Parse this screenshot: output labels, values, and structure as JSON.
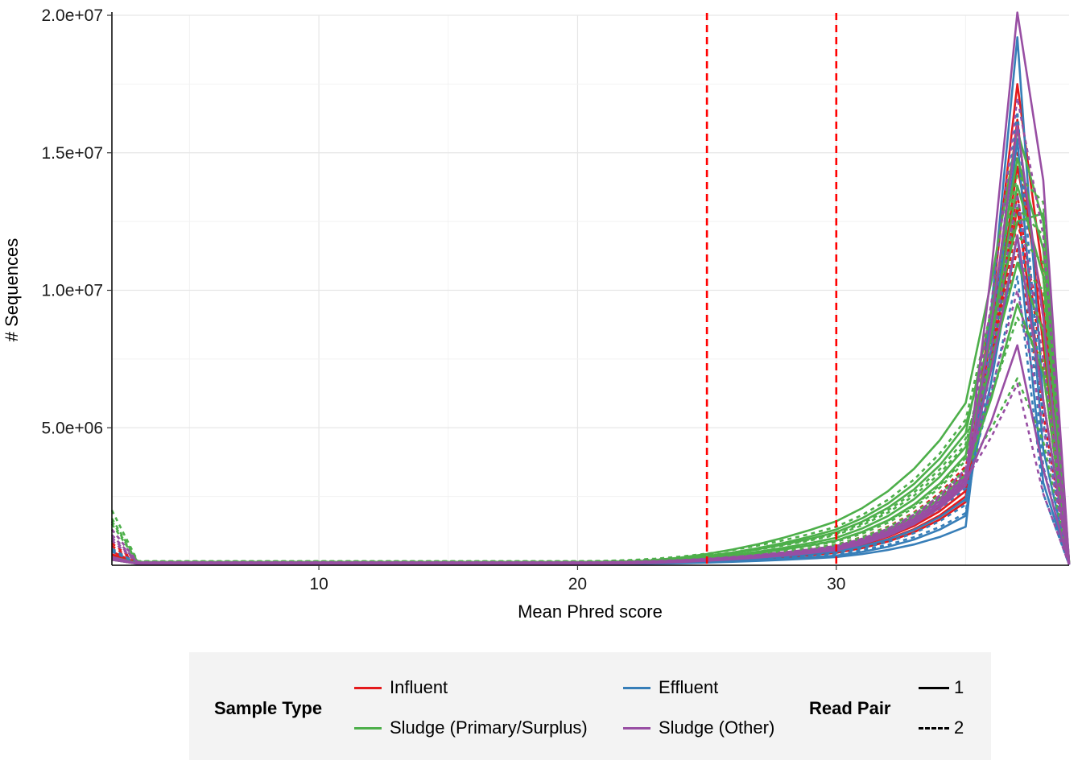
{
  "chart_data": {
    "type": "line",
    "title": "",
    "xlabel": "Mean Phred score",
    "ylabel": "# Sequences",
    "xlim": [
      2,
      39
    ],
    "ylim": [
      0,
      20000000
    ],
    "x_ticks": [
      10,
      20,
      30
    ],
    "y_ticks": [
      5000000,
      10000000,
      15000000,
      20000000
    ],
    "x_tick_labels": [
      "10",
      "20",
      "30"
    ],
    "y_tick_labels": [
      "5.0e+06",
      "1.0e+07",
      "1.5e+07",
      "2.0e+07"
    ],
    "grid": true,
    "vlines": [
      {
        "x": 25,
        "color": "#ff0000",
        "style": "dashed"
      },
      {
        "x": 30,
        "color": "#ff0000",
        "style": "dashed"
      }
    ],
    "x": [
      2,
      3,
      4,
      5,
      6,
      7,
      8,
      9,
      10,
      11,
      12,
      13,
      14,
      15,
      16,
      17,
      18,
      19,
      20,
      21,
      22,
      23,
      24,
      25,
      26,
      27,
      28,
      29,
      30,
      31,
      32,
      33,
      34,
      35,
      36,
      37,
      38,
      39
    ],
    "series": [
      {
        "type": "Influent",
        "pair": "1",
        "profile": {
          "low_start": 500000,
          "plateau": 60000,
          "v30": 550000,
          "v35": 2700000,
          "peak": 17500000,
          "v38": 10500000,
          "end": 80000
        }
      },
      {
        "type": "Influent",
        "pair": "2",
        "profile": {
          "low_start": 900000,
          "plateau": 90000,
          "v30": 700000,
          "v35": 3400000,
          "peak": 15000000,
          "v38": 9000000,
          "end": 60000
        }
      },
      {
        "type": "Influent",
        "pair": "1",
        "profile": {
          "low_start": 300000,
          "plateau": 50000,
          "v30": 450000,
          "v35": 2300000,
          "peak": 16200000,
          "v38": 8000000,
          "end": 50000
        }
      },
      {
        "type": "Influent",
        "pair": "2",
        "profile": {
          "low_start": 700000,
          "plateau": 80000,
          "v30": 650000,
          "v35": 3000000,
          "peak": 13500000,
          "v38": 7000000,
          "end": 40000
        }
      },
      {
        "type": "Influent",
        "pair": "1",
        "profile": {
          "low_start": 400000,
          "plateau": 55000,
          "v30": 500000,
          "v35": 2500000,
          "peak": 14500000,
          "v38": 9500000,
          "end": 70000
        }
      },
      {
        "type": "Influent",
        "pair": "2",
        "profile": {
          "low_start": 800000,
          "plateau": 85000,
          "v30": 600000,
          "v35": 3200000,
          "peak": 12500000,
          "v38": 8500000,
          "end": 50000
        }
      },
      {
        "type": "Influent",
        "pair": "1",
        "profile": {
          "low_start": 350000,
          "plateau": 60000,
          "v30": 600000,
          "v35": 2900000,
          "peak": 13000000,
          "v38": 6000000,
          "end": 40000
        }
      },
      {
        "type": "Influent",
        "pair": "2",
        "profile": {
          "low_start": 600000,
          "plateau": 80000,
          "v30": 750000,
          "v35": 3600000,
          "peak": 11500000,
          "v38": 5500000,
          "end": 30000
        }
      },
      {
        "type": "Effluent",
        "pair": "1",
        "profile": {
          "low_start": 300000,
          "plateau": 40000,
          "v30": 300000,
          "v35": 1400000,
          "peak": 19200000,
          "v38": 6000000,
          "end": 30000
        }
      },
      {
        "type": "Effluent",
        "pair": "2",
        "profile": {
          "low_start": 600000,
          "plateau": 60000,
          "v30": 400000,
          "v35": 1900000,
          "peak": 16500000,
          "v38": 5200000,
          "end": 20000
        }
      },
      {
        "type": "Effluent",
        "pair": "1",
        "profile": {
          "low_start": 250000,
          "plateau": 45000,
          "v30": 350000,
          "v35": 1800000,
          "peak": 15500000,
          "v38": 4200000,
          "end": 30000
        }
      },
      {
        "type": "Effluent",
        "pair": "2",
        "profile": {
          "low_start": 500000,
          "plateau": 65000,
          "v30": 450000,
          "v35": 2200000,
          "peak": 13500000,
          "v38": 3600000,
          "end": 20000
        }
      },
      {
        "type": "Effluent",
        "pair": "1",
        "profile": {
          "low_start": 300000,
          "plateau": 50000,
          "v30": 500000,
          "v35": 2400000,
          "peak": 12000000,
          "v38": 3000000,
          "end": 20000
        }
      },
      {
        "type": "Effluent",
        "pair": "2",
        "profile": {
          "low_start": 550000,
          "plateau": 70000,
          "v30": 600000,
          "v35": 2800000,
          "peak": 10500000,
          "v38": 2600000,
          "end": 15000
        }
      },
      {
        "type": "Sludge (Primary/Surplus)",
        "pair": "1",
        "profile": {
          "low_start": 300000,
          "plateau": 80000,
          "v30": 1600000,
          "v35": 5900000,
          "peak": 15800000,
          "v38": 12500000,
          "end": 100000
        }
      },
      {
        "type": "Sludge (Primary/Surplus)",
        "pair": "2",
        "profile": {
          "low_start": 2000000,
          "plateau": 150000,
          "v30": 1400000,
          "v35": 5300000,
          "peak": 14200000,
          "v38": 13200000,
          "end": 90000
        }
      },
      {
        "type": "Sludge (Primary/Surplus)",
        "pair": "1",
        "profile": {
          "low_start": 250000,
          "plateau": 70000,
          "v30": 1200000,
          "v35": 4800000,
          "peak": 14800000,
          "v38": 11500000,
          "end": 80000
        }
      },
      {
        "type": "Sludge (Primary/Surplus)",
        "pair": "2",
        "profile": {
          "low_start": 1700000,
          "plateau": 140000,
          "v30": 1100000,
          "v35": 4400000,
          "peak": 13000000,
          "v38": 12000000,
          "end": 70000
        }
      },
      {
        "type": "Sludge (Primary/Surplus)",
        "pair": "1",
        "profile": {
          "low_start": 200000,
          "plateau": 60000,
          "v30": 900000,
          "v35": 4000000,
          "peak": 13800000,
          "v38": 10500000,
          "end": 70000
        }
      },
      {
        "type": "Sludge (Primary/Surplus)",
        "pair": "2",
        "profile": {
          "low_start": 1500000,
          "plateau": 120000,
          "v30": 850000,
          "v35": 3800000,
          "peak": 12000000,
          "v38": 11000000,
          "end": 60000
        }
      },
      {
        "type": "Sludge (Primary/Surplus)",
        "pair": "1",
        "profile": {
          "low_start": 250000,
          "plateau": 70000,
          "v30": 1000000,
          "v35": 4300000,
          "peak": 11000000,
          "v38": 8500000,
          "end": 60000
        }
      },
      {
        "type": "Sludge (Primary/Surplus)",
        "pair": "2",
        "profile": {
          "low_start": 1300000,
          "plateau": 110000,
          "v30": 900000,
          "v35": 3900000,
          "peak": 9000000,
          "v38": 7500000,
          "end": 50000
        }
      },
      {
        "type": "Sludge (Primary/Surplus)",
        "pair": "1",
        "profile": {
          "low_start": 200000,
          "plateau": 60000,
          "v30": 700000,
          "v35": 3300000,
          "peak": 9500000,
          "v38": 7000000,
          "end": 50000
        }
      },
      {
        "type": "Sludge (Primary/Surplus)",
        "pair": "2",
        "profile": {
          "low_start": 1100000,
          "plateau": 100000,
          "v30": 750000,
          "v35": 3500000,
          "peak": 6800000,
          "v38": 4500000,
          "end": 40000
        }
      },
      {
        "type": "Sludge (Primary/Surplus)",
        "pair": "1",
        "profile": {
          "low_start": 250000,
          "plateau": 65000,
          "v30": 1300000,
          "v35": 5100000,
          "peak": 12500000,
          "v38": 12800000,
          "end": 90000
        }
      },
      {
        "type": "Sludge (Primary/Surplus)",
        "pair": "2",
        "profile": {
          "low_start": 1600000,
          "plateau": 130000,
          "v30": 1150000,
          "v35": 4600000,
          "peak": 11000000,
          "v38": 10000000,
          "end": 60000
        }
      },
      {
        "type": "Sludge (Other)",
        "pair": "1",
        "profile": {
          "low_start": 300000,
          "plateau": 60000,
          "v30": 600000,
          "v35": 3100000,
          "peak": 20100000,
          "v38": 14000000,
          "end": 90000
        }
      },
      {
        "type": "Sludge (Other)",
        "pair": "2",
        "profile": {
          "low_start": 1300000,
          "plateau": 110000,
          "v30": 700000,
          "v35": 3500000,
          "peak": 17000000,
          "v38": 12000000,
          "end": 70000
        }
      },
      {
        "type": "Sludge (Other)",
        "pair": "1",
        "profile": {
          "low_start": 250000,
          "plateau": 55000,
          "v30": 550000,
          "v35": 2900000,
          "peak": 16000000,
          "v38": 9000000,
          "end": 60000
        }
      },
      {
        "type": "Sludge (Other)",
        "pair": "2",
        "profile": {
          "low_start": 1100000,
          "plateau": 100000,
          "v30": 650000,
          "v35": 3300000,
          "peak": 13500000,
          "v38": 7500000,
          "end": 50000
        }
      },
      {
        "type": "Sludge (Other)",
        "pair": "1",
        "profile": {
          "low_start": 250000,
          "plateau": 60000,
          "v30": 650000,
          "v35": 3200000,
          "peak": 12000000,
          "v38": 6000000,
          "end": 40000
        }
      },
      {
        "type": "Sludge (Other)",
        "pair": "2",
        "profile": {
          "low_start": 1000000,
          "plateau": 95000,
          "v30": 700000,
          "v35": 3400000,
          "peak": 10000000,
          "v38": 5000000,
          "end": 30000
        }
      },
      {
        "type": "Sludge (Other)",
        "pair": "1",
        "profile": {
          "low_start": 200000,
          "plateau": 55000,
          "v30": 600000,
          "v35": 3000000,
          "peak": 8000000,
          "v38": 3500000,
          "end": 30000
        }
      },
      {
        "type": "Sludge (Other)",
        "pair": "2",
        "profile": {
          "low_start": 900000,
          "plateau": 90000,
          "v30": 650000,
          "v35": 3100000,
          "peak": 6600000,
          "v38": 2600000,
          "end": 20000
        }
      }
    ],
    "colors": {
      "Influent": "#e41a1c",
      "Effluent": "#377eb8",
      "Sludge (Primary/Surplus)": "#4daf4a",
      "Sludge (Other)": "#984ea3",
      "vline": "#ff0000"
    }
  },
  "legend": {
    "sample_type_title": "Sample Type",
    "read_pair_title": "Read Pair",
    "sample_types": [
      {
        "label": "Influent",
        "color": "#e41a1c"
      },
      {
        "label": "Effluent",
        "color": "#377eb8"
      },
      {
        "label": "Sludge (Primary/Surplus)",
        "color": "#4daf4a"
      },
      {
        "label": "Sludge (Other)",
        "color": "#984ea3"
      }
    ],
    "read_pairs": [
      {
        "label": "1",
        "style": "solid"
      },
      {
        "label": "2",
        "style": "dashed"
      }
    ]
  }
}
